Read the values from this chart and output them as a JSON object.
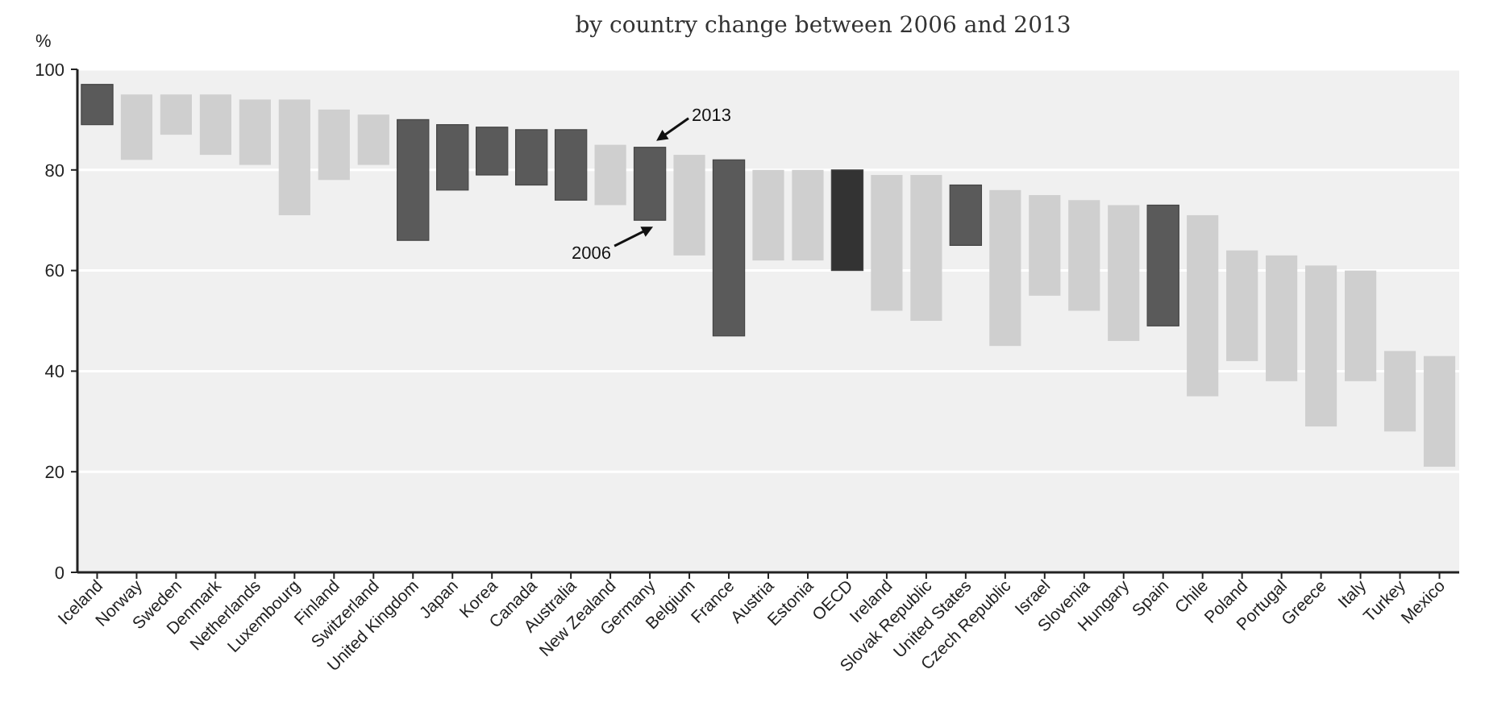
{
  "chart_data": {
    "type": "bar",
    "title": "by country change between 2006 and 2013",
    "ylabel": "%",
    "categories": [
      "Iceland",
      "Norway",
      "Sweden",
      "Denmark",
      "Netherlands",
      "Luxembourg",
      "Finland",
      "Switzerland",
      "United Kingdom",
      "Japan",
      "Korea",
      "Canada",
      "Australia",
      "New Zealand",
      "Germany",
      "Belgium",
      "France",
      "Austria",
      "Estonia",
      "OECD",
      "Ireland",
      "Slovak Republic",
      "United States",
      "Czech Republic",
      "Israel",
      "Slovenia",
      "Hungary",
      "Spain",
      "Chile",
      "Poland",
      "Portugal",
      "Greece",
      "Italy",
      "Turkey",
      "Mexico"
    ],
    "base": [
      89,
      82,
      87,
      83,
      81,
      71,
      78,
      81,
      66,
      76,
      79,
      77,
      74,
      73,
      70,
      63,
      47,
      62,
      62,
      60,
      52,
      50,
      65,
      45,
      55,
      52,
      46,
      49,
      35,
      42,
      38,
      29,
      38,
      28,
      21
    ],
    "values": [
      8,
      13,
      8,
      12,
      13,
      23,
      14,
      10,
      24,
      13,
      9.5,
      11,
      14,
      12,
      14.5,
      20,
      35,
      18,
      18,
      20,
      27,
      29,
      12,
      31,
      20,
      22,
      27,
      24,
      36,
      22,
      25,
      32,
      22,
      16,
      22
    ],
    "colors": [
      "#5a5a5a",
      "#cfcfcf",
      "#cfcfcf",
      "#cfcfcf",
      "#cfcfcf",
      "#cfcfcf",
      "#cfcfcf",
      "#cfcfcf",
      "#5a5a5a",
      "#5a5a5a",
      "#5a5a5a",
      "#5a5a5a",
      "#5a5a5a",
      "#cfcfcf",
      "#5a5a5a",
      "#cfcfcf",
      "#5a5a5a",
      "#cfcfcf",
      "#cfcfcf",
      "#333333",
      "#cfcfcf",
      "#cfcfcf",
      "#5a5a5a",
      "#cfcfcf",
      "#cfcfcf",
      "#cfcfcf",
      "#cfcfcf",
      "#5a5a5a",
      "#cfcfcf",
      "#cfcfcf",
      "#cfcfcf",
      "#cfcfcf",
      "#cfcfcf",
      "#cfcfcf",
      "#cfcfcf"
    ],
    "ylim": [
      0,
      100
    ],
    "yticks": [
      0,
      20,
      40,
      60,
      80,
      100
    ],
    "grid": "y",
    "annotations": [
      {
        "text": "2013",
        "x": "Germany",
        "y": 84.5
      },
      {
        "text": "2006",
        "x": "Germany",
        "y": 70
      }
    ]
  }
}
